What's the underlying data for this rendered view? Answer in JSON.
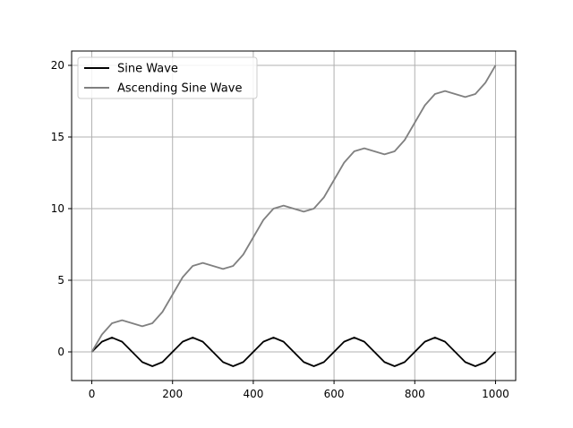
{
  "chart_data": {
    "type": "line",
    "title": "",
    "xlabel": "",
    "ylabel": "",
    "xlim": [
      -50,
      1050
    ],
    "ylim": [
      -2,
      21
    ],
    "xticks": [
      0,
      200,
      400,
      600,
      800,
      1000
    ],
    "yticks": [
      0,
      5,
      10,
      15,
      20
    ],
    "grid": true,
    "legend": {
      "placement": "top-left"
    },
    "series": [
      {
        "name": "Sine Wave",
        "color": "#000000",
        "x": [
          0,
          25,
          50,
          75,
          100,
          125,
          150,
          175,
          200,
          225,
          250,
          275,
          300,
          325,
          350,
          375,
          400,
          425,
          450,
          475,
          500,
          525,
          550,
          575,
          600,
          625,
          650,
          675,
          700,
          725,
          750,
          775,
          800,
          825,
          850,
          875,
          900,
          925,
          950,
          975,
          1000
        ],
        "y": [
          0,
          0.71,
          1,
          0.71,
          0,
          -0.71,
          -1,
          -0.71,
          0,
          0.71,
          1,
          0.71,
          0,
          -0.71,
          -1,
          -0.71,
          0,
          0.71,
          1,
          0.71,
          0,
          -0.71,
          -1,
          -0.71,
          0,
          0.71,
          1,
          0.71,
          0,
          -0.71,
          -1,
          -0.71,
          0,
          0.71,
          1,
          0.71,
          0,
          -0.71,
          -1,
          -0.71,
          0
        ]
      },
      {
        "name": "Ascending Sine Wave",
        "color": "#808080",
        "x": [
          0,
          25,
          50,
          75,
          100,
          125,
          150,
          175,
          200,
          225,
          250,
          275,
          300,
          325,
          350,
          375,
          400,
          425,
          450,
          475,
          500,
          525,
          550,
          575,
          600,
          625,
          650,
          675,
          700,
          725,
          750,
          775,
          800,
          825,
          850,
          875,
          900,
          925,
          950,
          975,
          1000
        ],
        "y": [
          0,
          1.21,
          2.0,
          2.21,
          2.0,
          1.79,
          2.0,
          2.79,
          4.0,
          5.21,
          6.0,
          6.21,
          6.0,
          5.79,
          6.0,
          6.79,
          8.0,
          9.21,
          10.0,
          10.21,
          10.0,
          9.79,
          10.0,
          10.79,
          12.0,
          13.21,
          14.0,
          14.21,
          14.0,
          13.79,
          14.0,
          14.79,
          16.0,
          17.21,
          18.0,
          18.21,
          18.0,
          17.79,
          18.0,
          18.79,
          20.0
        ]
      }
    ]
  }
}
